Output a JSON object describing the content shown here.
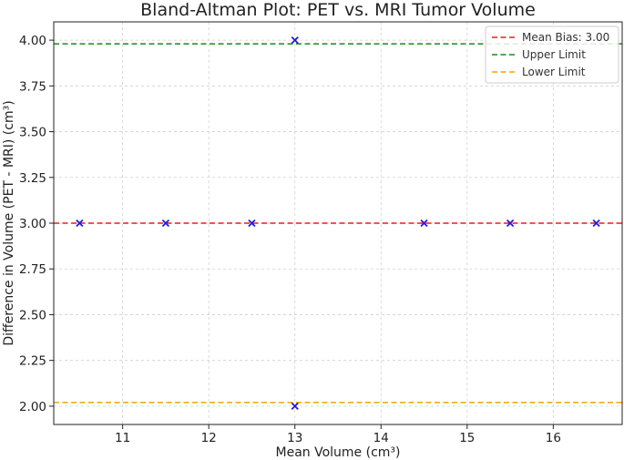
{
  "chart_data": {
    "type": "scatter",
    "title": "Bland-Altman Plot: PET vs. MRI Tumor Volume",
    "xlabel": "Mean Volume (cm³)",
    "ylabel": "Difference in Volume (PET - MRI) (cm³)",
    "xlim": [
      10.2,
      16.8
    ],
    "ylim": [
      1.9,
      4.1
    ],
    "xticks": [
      11,
      12,
      13,
      14,
      15,
      16
    ],
    "yticks": [
      2.0,
      2.25,
      2.5,
      2.75,
      3.0,
      3.25,
      3.5,
      3.75,
      4.0
    ],
    "grid": true,
    "legend_position": "top-right",
    "points": {
      "marker": "x",
      "color": "#1f1fd6",
      "x": [
        10.5,
        11.5,
        12.5,
        13.0,
        13.0,
        14.5,
        15.5,
        16.5
      ],
      "y": [
        3.0,
        3.0,
        3.0,
        4.0,
        2.0,
        3.0,
        3.0,
        3.0
      ]
    },
    "reference_lines": [
      {
        "name": "Mean Bias: 3.00",
        "y": 3.0,
        "color": "#ee1c1c"
      },
      {
        "name": "Upper Limit",
        "y": 3.98,
        "color": "#1a8a1a"
      },
      {
        "name": "Lower Limit",
        "y": 2.02,
        "color": "#f5a300"
      }
    ]
  }
}
